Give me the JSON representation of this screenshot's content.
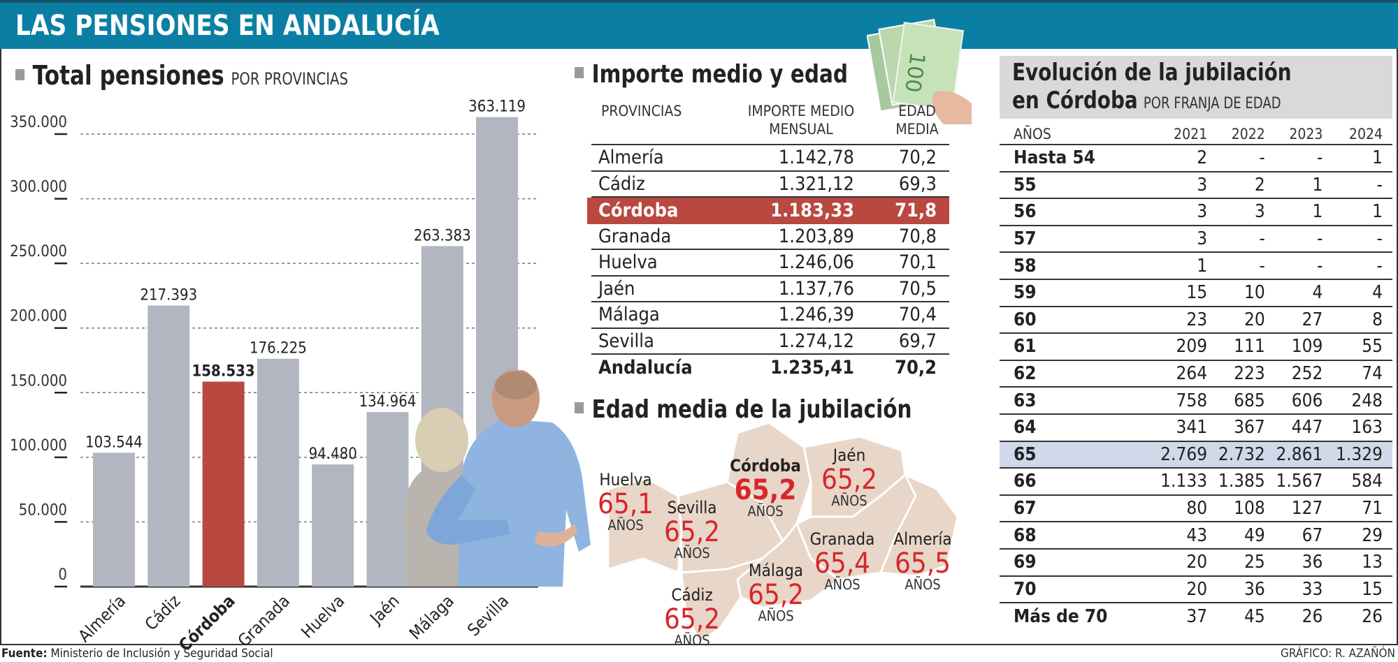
{
  "header": {
    "title": "LAS PENSIONES EN ANDALUCÍA"
  },
  "total_section": {
    "title": "Total pensiones",
    "subtitle": "POR PROVINCIAS"
  },
  "chart_data": {
    "type": "bar",
    "title": "Total pensiones",
    "subtitle": "POR PROVINCIAS",
    "xlabel": "",
    "ylabel": "",
    "categories": [
      "Almería",
      "Cádiz",
      "Córdoba",
      "Granada",
      "Huelva",
      "Jaén",
      "Málaga",
      "Sevilla"
    ],
    "values": [
      103544,
      217393,
      158533,
      176225,
      94480,
      134964,
      263383,
      363119
    ],
    "value_labels": [
      "103.544",
      "217.393",
      "158.533",
      "176.225",
      "94.480",
      "134.964",
      "263.383",
      "363.119"
    ],
    "highlight": "Córdoba",
    "ylim": [
      0,
      350000
    ],
    "yticks": [
      0,
      50000,
      100000,
      150000,
      200000,
      250000,
      300000,
      350000
    ],
    "ytick_labels": [
      "0",
      "50.000",
      "100.000",
      "150.000",
      "200.000",
      "250.000",
      "300.000",
      "350.000"
    ],
    "grid": true,
    "colors": {
      "bar": "#b1b6c0",
      "highlight": "#b94840"
    }
  },
  "importe_section": {
    "title": "Importe medio y edad",
    "headers": {
      "province": "PROVINCIAS",
      "amount_line1": "IMPORTE MEDIO",
      "amount_line2": "MENSUAL",
      "age_line1": "EDAD",
      "age_line2": "MEDIA"
    },
    "rows": [
      {
        "province": "Almería",
        "amount": "1.142,78",
        "age": "70,2"
      },
      {
        "province": "Cádiz",
        "amount": "1.321,12",
        "age": "69,3"
      },
      {
        "province": "Córdoba",
        "amount": "1.183,33",
        "age": "71,8",
        "highlight": true
      },
      {
        "province": "Granada",
        "amount": "1.203,89",
        "age": "70,8"
      },
      {
        "province": "Huelva",
        "amount": "1.246,06",
        "age": "70,1"
      },
      {
        "province": "Jaén",
        "amount": "1.137,76",
        "age": "70,5"
      },
      {
        "province": "Málaga",
        "amount": "1.246,39",
        "age": "70,4"
      },
      {
        "province": "Sevilla",
        "amount": "1.274,12",
        "age": "69,7"
      }
    ],
    "total": {
      "province": "Andalucía",
      "amount": "1.235,41",
      "age": "70,2"
    }
  },
  "map_section": {
    "title": "Edad media de la jubilación",
    "unit": "AÑOS",
    "provinces": [
      {
        "name": "Huelva",
        "value": "65,1"
      },
      {
        "name": "Sevilla",
        "value": "65,2"
      },
      {
        "name": "Córdoba",
        "value": "65,2",
        "highlight": true
      },
      {
        "name": "Jaén",
        "value": "65,2"
      },
      {
        "name": "Granada",
        "value": "65,4"
      },
      {
        "name": "Almería",
        "value": "65,5"
      },
      {
        "name": "Málaga",
        "value": "65,2"
      },
      {
        "name": "Cádiz",
        "value": "65,2"
      }
    ],
    "colors": {
      "land": "#e8d6c9",
      "value": "#d8262a"
    }
  },
  "evolution_section": {
    "title_line1": "Evolución de la jubilación",
    "title_line2": "en Córdoba",
    "subtitle": "POR FRANJA DE EDAD",
    "headers": [
      "AÑOS",
      "2021",
      "2022",
      "2023",
      "2024"
    ],
    "rows": [
      {
        "age": "Hasta 54",
        "values": [
          "2",
          "-",
          "-",
          "1"
        ]
      },
      {
        "age": "55",
        "values": [
          "3",
          "2",
          "1",
          "-"
        ]
      },
      {
        "age": "56",
        "values": [
          "3",
          "3",
          "1",
          "1"
        ]
      },
      {
        "age": "57",
        "values": [
          "3",
          "-",
          "-",
          "-"
        ]
      },
      {
        "age": "58",
        "values": [
          "1",
          "-",
          "-",
          "-"
        ]
      },
      {
        "age": "59",
        "values": [
          "15",
          "10",
          "4",
          "4"
        ]
      },
      {
        "age": "60",
        "values": [
          "23",
          "20",
          "27",
          "8"
        ]
      },
      {
        "age": "61",
        "values": [
          "209",
          "111",
          "109",
          "55"
        ]
      },
      {
        "age": "62",
        "values": [
          "264",
          "223",
          "252",
          "74"
        ]
      },
      {
        "age": "63",
        "values": [
          "758",
          "685",
          "606",
          "248"
        ]
      },
      {
        "age": "64",
        "values": [
          "341",
          "367",
          "447",
          "163"
        ]
      },
      {
        "age": "65",
        "values": [
          "2.769",
          "2.732",
          "2.861",
          "1.329"
        ],
        "highlight": true
      },
      {
        "age": "66",
        "values": [
          "1.133",
          "1.385",
          "1.567",
          "584"
        ]
      },
      {
        "age": "67",
        "values": [
          "80",
          "108",
          "127",
          "71"
        ]
      },
      {
        "age": "68",
        "values": [
          "43",
          "49",
          "67",
          "29"
        ]
      },
      {
        "age": "69",
        "values": [
          "20",
          "25",
          "36",
          "13"
        ]
      },
      {
        "age": "70",
        "values": [
          "20",
          "36",
          "33",
          "15"
        ]
      },
      {
        "age": "Más de 70",
        "values": [
          "37",
          "45",
          "26",
          "26"
        ]
      }
    ]
  },
  "footer": {
    "source_label": "Fuente:",
    "source_text": "Ministerio de Inclusión y Seguridad Social",
    "credit": "GRÁFICO: R. AZAÑÓN"
  }
}
